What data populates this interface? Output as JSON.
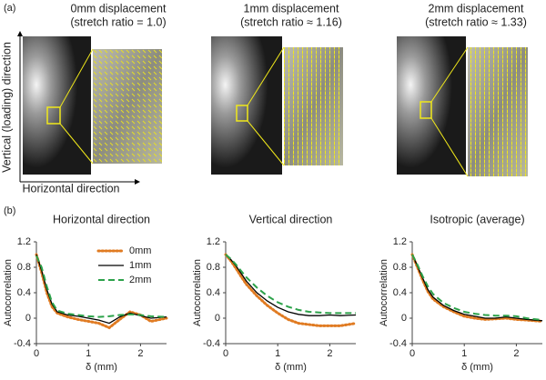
{
  "figure": {
    "label_a": "(a)",
    "label_b": "(b)",
    "columns": [
      {
        "title": "0mm displacement",
        "subtitle": "(stretch ratio = 1.0)"
      },
      {
        "title": "1mm displacement",
        "subtitle": "(stretch ratio ≈ 1.16)"
      },
      {
        "title": "2mm displacement",
        "subtitle": "(stretch ratio ≈ 1.33)"
      }
    ],
    "vertical_axis": "Vertical (loading) direction",
    "horizontal_axis": "Horizontal direction"
  },
  "chart_data": [
    {
      "type": "line",
      "title": "Horizontal direction",
      "x_label": "δ (mm)",
      "y_label": "Autocorrelation",
      "legend": "upper right",
      "x": [
        0,
        0.1,
        0.2,
        0.3,
        0.4,
        0.6,
        0.8,
        1.0,
        1.2,
        1.4,
        1.6,
        1.8,
        2.0,
        2.2,
        2.5
      ],
      "xlim": [
        0,
        2.5
      ],
      "xticks": [
        0,
        1,
        2
      ],
      "ylim": [
        -0.4,
        1.2
      ],
      "yticks": [
        -0.4,
        0,
        0.4,
        0.8,
        1.2
      ],
      "series": [
        {
          "name": "0mm",
          "color": "#e07b22",
          "style": "dotted",
          "values": [
            1.0,
            0.72,
            0.4,
            0.18,
            0.08,
            0.02,
            -0.02,
            -0.05,
            -0.08,
            -0.15,
            -0.02,
            0.1,
            0.05,
            -0.05,
            0.0
          ]
        },
        {
          "name": "1mm",
          "color": "#000000",
          "style": "solid",
          "values": [
            1.0,
            0.75,
            0.45,
            0.22,
            0.1,
            0.05,
            0.03,
            0.0,
            -0.03,
            -0.08,
            0.02,
            0.08,
            0.04,
            0.0,
            0.02
          ]
        },
        {
          "name": "2mm",
          "color": "#2ca24a",
          "style": "dashed",
          "values": [
            0.98,
            0.8,
            0.5,
            0.25,
            0.12,
            0.07,
            0.05,
            0.03,
            0.02,
            0.03,
            0.05,
            0.06,
            0.05,
            0.03,
            0.02
          ]
        }
      ]
    },
    {
      "type": "line",
      "title": "Vertical direction",
      "x_label": "δ (mm)",
      "y_label": "Autocorrelation",
      "x": [
        0,
        0.1,
        0.2,
        0.3,
        0.4,
        0.6,
        0.8,
        1.0,
        1.2,
        1.4,
        1.6,
        1.8,
        2.0,
        2.2,
        2.5
      ],
      "xlim": [
        0,
        2.5
      ],
      "xticks": [
        0,
        1,
        2
      ],
      "ylim": [
        -0.4,
        1.2
      ],
      "yticks": [
        -0.4,
        0,
        0.4,
        0.8,
        1.2
      ],
      "series": [
        {
          "color": "#e07b22",
          "style": "dotted",
          "values": [
            1.0,
            0.9,
            0.78,
            0.65,
            0.53,
            0.35,
            0.2,
            0.08,
            -0.02,
            -0.08,
            -0.1,
            -0.12,
            -0.12,
            -0.12,
            -0.08
          ]
        },
        {
          "color": "#000000",
          "style": "solid",
          "values": [
            1.0,
            0.92,
            0.82,
            0.7,
            0.58,
            0.4,
            0.27,
            0.17,
            0.1,
            0.06,
            0.04,
            0.04,
            0.05,
            0.04,
            0.05
          ]
        },
        {
          "color": "#2ca24a",
          "style": "dashed",
          "values": [
            1.0,
            0.93,
            0.84,
            0.74,
            0.64,
            0.48,
            0.35,
            0.25,
            0.18,
            0.13,
            0.1,
            0.09,
            0.08,
            0.08,
            0.08
          ]
        }
      ]
    },
    {
      "type": "line",
      "title": "Isotropic (average)",
      "x_label": "δ (mm)",
      "y_label": "Autocorrelation",
      "x": [
        0,
        0.1,
        0.2,
        0.3,
        0.4,
        0.6,
        0.8,
        1.0,
        1.2,
        1.4,
        1.6,
        1.8,
        2.0,
        2.2,
        2.5
      ],
      "xlim": [
        0,
        2.5
      ],
      "xticks": [
        0,
        1,
        2
      ],
      "ylim": [
        -0.4,
        1.2
      ],
      "yticks": [
        -0.4,
        0,
        0.4,
        0.8,
        1.2
      ],
      "series": [
        {
          "color": "#e07b22",
          "style": "dotted",
          "values": [
            1.0,
            0.8,
            0.6,
            0.42,
            0.3,
            0.18,
            0.1,
            0.03,
            0.0,
            -0.02,
            -0.01,
            0.0,
            -0.02,
            -0.03,
            -0.05
          ]
        },
        {
          "color": "#000000",
          "style": "solid",
          "values": [
            1.0,
            0.82,
            0.63,
            0.45,
            0.33,
            0.2,
            0.12,
            0.06,
            0.03,
            0.0,
            0.0,
            0.02,
            0.0,
            -0.02,
            -0.04
          ]
        },
        {
          "color": "#2ca24a",
          "style": "dashed",
          "values": [
            1.0,
            0.84,
            0.66,
            0.5,
            0.38,
            0.24,
            0.16,
            0.1,
            0.07,
            0.05,
            0.04,
            0.04,
            0.03,
            0.0,
            -0.03
          ]
        }
      ]
    }
  ]
}
